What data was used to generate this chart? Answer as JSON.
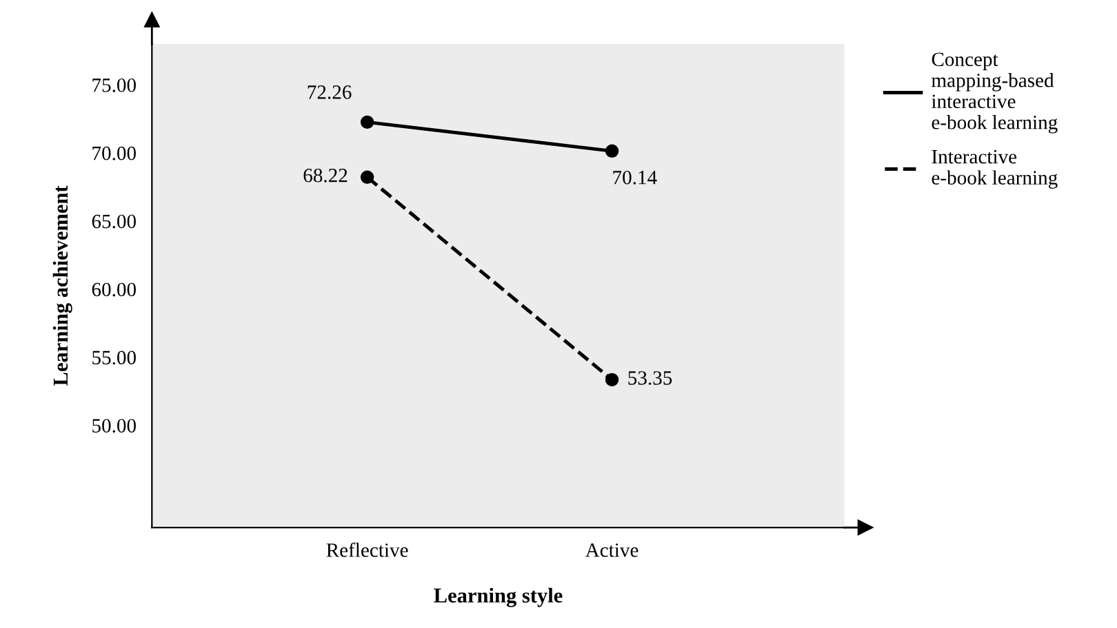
{
  "chart_data": {
    "type": "line",
    "xlabel": "Learning style",
    "ylabel": "Learning achievement",
    "categories": [
      "Reflective",
      "Active"
    ],
    "series": [
      {
        "name": "Concept\nmapping-based\ninteractive\ne-book learning",
        "color": "#000000",
        "values": [
          72.26,
          70.14
        ],
        "value_labels": [
          "72.26",
          "70.14"
        ],
        "line_style": "solid"
      },
      {
        "name": "Interactive\ne-book learning",
        "color": "#000000",
        "values": [
          68.22,
          53.35
        ],
        "value_labels": [
          "68.22",
          "53.35"
        ],
        "line_style": "dashed"
      }
    ],
    "ylim": [
      42.5,
      78
    ],
    "yticks": [
      {
        "value": 50,
        "label": "50.00"
      },
      {
        "value": 55,
        "label": "55.00"
      },
      {
        "value": 60,
        "label": "60.00"
      },
      {
        "value": 65,
        "label": "65.00"
      },
      {
        "value": 70,
        "label": "70.00"
      },
      {
        "value": 75,
        "label": "75.00"
      }
    ],
    "marker": "circle",
    "grid": false,
    "legend": "right"
  }
}
